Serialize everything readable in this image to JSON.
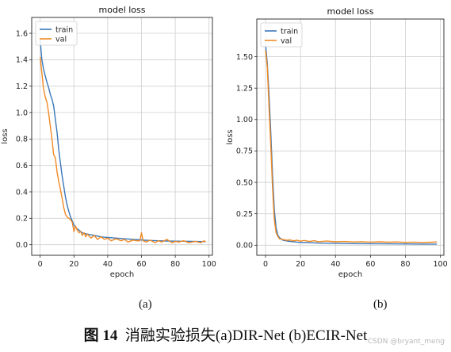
{
  "colors": {
    "train": "#3a77b8",
    "val": "#f08a24",
    "grid": "#cfcfcf",
    "frame": "#222222"
  },
  "chart_data": [
    {
      "type": "line",
      "title": "model loss",
      "xlabel": "epoch",
      "ylabel": "loss",
      "xlim": [
        -5,
        102
      ],
      "ylim": [
        -0.08,
        1.72
      ],
      "xticks": [
        0,
        20,
        40,
        60,
        80,
        100
      ],
      "yticks": [
        0.0,
        0.2,
        0.4,
        0.6,
        0.8,
        1.0,
        1.2,
        1.4,
        1.6
      ],
      "ytick_labels": [
        "0.0",
        "0.2",
        "0.4",
        "0.6",
        "0.8",
        "1.0",
        "1.2",
        "1.4",
        "1.6"
      ],
      "grid": true,
      "legend": "top-left",
      "series": [
        {
          "name": "train",
          "color": "train",
          "x": [
            0,
            1,
            2,
            3,
            4,
            5,
            6,
            7,
            8,
            9,
            10,
            11,
            12,
            13,
            14,
            15,
            16,
            17,
            18,
            19,
            20,
            21,
            22,
            23,
            24,
            25,
            26,
            28,
            30,
            32,
            34,
            36,
            38,
            40,
            45,
            50,
            55,
            58,
            60,
            62,
            65,
            70,
            75,
            80,
            85,
            90,
            95,
            98
          ],
          "y": [
            1.55,
            1.4,
            1.33,
            1.28,
            1.23,
            1.19,
            1.14,
            1.1,
            1.05,
            0.95,
            0.85,
            0.72,
            0.62,
            0.52,
            0.44,
            0.36,
            0.3,
            0.25,
            0.21,
            0.18,
            0.15,
            0.13,
            0.12,
            0.11,
            0.1,
            0.09,
            0.085,
            0.08,
            0.075,
            0.07,
            0.065,
            0.06,
            0.057,
            0.055,
            0.05,
            0.045,
            0.04,
            0.038,
            0.036,
            0.034,
            0.032,
            0.03,
            0.028,
            0.027,
            0.026,
            0.025,
            0.024,
            0.024
          ]
        },
        {
          "name": "val",
          "color": "val",
          "x": [
            0,
            1,
            2,
            3,
            4,
            5,
            6,
            7,
            8,
            9,
            10,
            11,
            12,
            13,
            14,
            15,
            16,
            17,
            18,
            19,
            20,
            21,
            22,
            23,
            24,
            25,
            26,
            27,
            28,
            30,
            32,
            34,
            36,
            38,
            40,
            42,
            45,
            48,
            50,
            52,
            55,
            57,
            59,
            60,
            61,
            63,
            65,
            68,
            70,
            72,
            75,
            78,
            80,
            82,
            85,
            88,
            90,
            92,
            95,
            97,
            98
          ],
          "y": [
            1.42,
            1.3,
            1.18,
            1.12,
            1.08,
            1.0,
            0.9,
            0.8,
            0.68,
            0.66,
            0.55,
            0.48,
            0.42,
            0.35,
            0.28,
            0.23,
            0.21,
            0.2,
            0.19,
            0.17,
            0.1,
            0.14,
            0.11,
            0.09,
            0.1,
            0.07,
            0.09,
            0.06,
            0.08,
            0.05,
            0.07,
            0.04,
            0.06,
            0.04,
            0.05,
            0.03,
            0.045,
            0.03,
            0.04,
            0.02,
            0.035,
            0.03,
            0.03,
            0.09,
            0.03,
            0.02,
            0.035,
            0.015,
            0.03,
            0.02,
            0.04,
            0.015,
            0.025,
            0.02,
            0.03,
            0.015,
            0.02,
            0.025,
            0.015,
            0.03,
            0.02
          ]
        }
      ]
    },
    {
      "type": "line",
      "title": "model loss",
      "xlabel": "epoch",
      "ylabel": "loss",
      "xlim": [
        -5,
        102
      ],
      "ylim": [
        -0.08,
        1.8
      ],
      "xticks": [
        0,
        20,
        40,
        60,
        80,
        100
      ],
      "yticks": [
        0.0,
        0.25,
        0.5,
        0.75,
        1.0,
        1.25,
        1.5
      ],
      "ytick_labels": [
        "0.00",
        "0.25",
        "0.50",
        "0.75",
        "1.00",
        "1.25",
        "1.50"
      ],
      "grid": true,
      "legend": "top-left",
      "series": [
        {
          "name": "train",
          "color": "train",
          "x": [
            0,
            1,
            2,
            3,
            4,
            5,
            6,
            7,
            8,
            9,
            10,
            12,
            14,
            16,
            18,
            20,
            25,
            30,
            40,
            50,
            60,
            70,
            80,
            90,
            98
          ],
          "y": [
            1.6,
            1.45,
            1.2,
            0.9,
            0.55,
            0.28,
            0.14,
            0.08,
            0.06,
            0.05,
            0.04,
            0.035,
            0.03,
            0.028,
            0.025,
            0.022,
            0.02,
            0.017,
            0.015,
            0.013,
            0.012,
            0.011,
            0.01,
            0.009,
            0.009
          ]
        },
        {
          "name": "val",
          "color": "val",
          "x": [
            0,
            1,
            2,
            3,
            4,
            5,
            6,
            7,
            8,
            9,
            10,
            12,
            14,
            16,
            18,
            20,
            22,
            25,
            28,
            30,
            35,
            40,
            45,
            50,
            55,
            60,
            65,
            70,
            75,
            80,
            85,
            90,
            95,
            98
          ],
          "y": [
            1.55,
            1.42,
            1.1,
            0.8,
            0.45,
            0.2,
            0.1,
            0.07,
            0.05,
            0.05,
            0.045,
            0.04,
            0.042,
            0.035,
            0.04,
            0.032,
            0.038,
            0.03,
            0.036,
            0.028,
            0.033,
            0.027,
            0.03,
            0.026,
            0.028,
            0.025,
            0.027,
            0.024,
            0.026,
            0.023,
            0.025,
            0.022,
            0.024,
            0.026
          ]
        }
      ]
    }
  ],
  "subfigure_labels": [
    "(a)",
    "(b)"
  ],
  "caption": {
    "number": "图 14",
    "text": "消融实验损失(a)DIR-Net (b)ECIR-Net"
  },
  "watermark": "CSDN @bryant_meng"
}
